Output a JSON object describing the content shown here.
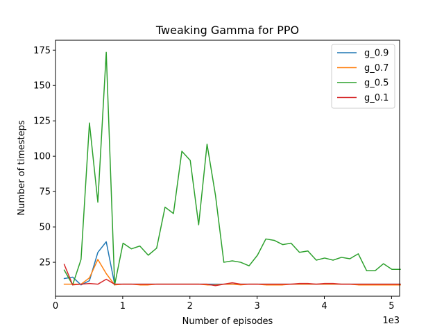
{
  "chart_data": {
    "type": "line",
    "title": "Tweaking Gamma for PPO",
    "xlabel": "Number of episodes",
    "ylabel": "Number of timesteps",
    "x_offset_label": "1e3",
    "xlim": [
      0,
      5.12
    ],
    "ylim": [
      1,
      182
    ],
    "xticks": [
      0,
      1,
      2,
      3,
      4,
      5
    ],
    "xtick_labels": [
      "0",
      "1",
      "2",
      "3",
      "4",
      "5"
    ],
    "yticks": [
      25,
      50,
      75,
      100,
      125,
      150,
      175
    ],
    "ytick_labels": [
      "25",
      "50",
      "75",
      "100",
      "125",
      "150",
      "175"
    ],
    "grid": false,
    "legend_position": "top-right",
    "x": [
      0.13,
      0.255,
      0.38,
      0.505,
      0.63,
      0.755,
      0.88,
      1.005,
      1.13,
      1.255,
      1.38,
      1.505,
      1.63,
      1.755,
      1.88,
      2.005,
      2.13,
      2.255,
      2.38,
      2.505,
      2.63,
      2.755,
      2.88,
      3.005,
      3.13,
      3.255,
      3.38,
      3.505,
      3.63,
      3.755,
      3.88,
      4.005,
      4.13,
      4.255,
      4.38,
      4.505,
      4.63,
      4.755,
      4.88,
      5.005,
      5.13
    ],
    "series": [
      {
        "name": "g_0.9",
        "color": "#1f77b4",
        "values": [
          13.5,
          14.5,
          9,
          12,
          32,
          39.5,
          9.5,
          9.5,
          9.5,
          9.5,
          9.5,
          9.5,
          9.5,
          9.5,
          9.5,
          9.5,
          9.5,
          9.5,
          9.5,
          9.5,
          9.5,
          9.5,
          9.5,
          9.5,
          9.5,
          9.5,
          9.5,
          9.5,
          9.5,
          9.5,
          9.5,
          9.5,
          9.5,
          9.5,
          9.5,
          9.5,
          9.5,
          9.5,
          9.5,
          9.5,
          9.5
        ]
      },
      {
        "name": "g_0.7",
        "color": "#ff7f0e",
        "values": [
          9.5,
          9.5,
          9.5,
          14,
          27,
          17,
          9,
          9.5,
          9.5,
          9,
          9,
          9.5,
          9.5,
          9.5,
          9.5,
          9.5,
          9.5,
          9,
          9,
          9.5,
          9.5,
          9,
          9.5,
          9.5,
          9,
          9,
          9,
          9.5,
          9.5,
          9.5,
          9.5,
          9.5,
          9.5,
          9.5,
          9.5,
          9,
          9,
          9,
          9,
          9,
          9
        ]
      },
      {
        "name": "g_0.5",
        "color": "#2ca02c",
        "values": [
          19.5,
          9,
          27,
          123.5,
          67.5,
          173.5,
          9,
          38.5,
          34.5,
          36.5,
          30,
          35,
          64,
          59.5,
          103.5,
          97,
          51.5,
          108.5,
          72.5,
          25,
          26,
          25,
          22.5,
          30,
          41.5,
          40.5,
          37.5,
          38.5,
          32,
          33,
          26.5,
          28,
          26.5,
          28.5,
          27.5,
          31,
          19,
          19,
          24,
          20,
          20
        ]
      },
      {
        "name": "g_0.1",
        "color": "#d62728",
        "values": [
          23.5,
          9,
          9.5,
          10,
          9.5,
          13,
          9.5,
          9.5,
          9.5,
          9.5,
          9.5,
          9.5,
          9.5,
          9.5,
          9.5,
          9.5,
          9.5,
          9.5,
          8.5,
          9.5,
          10.5,
          9.5,
          9.5,
          9.5,
          9.5,
          9.5,
          9.5,
          9.5,
          10,
          10,
          9.5,
          10,
          10,
          9.5,
          9.5,
          9.5,
          9.5,
          9.5,
          9.5,
          9.5,
          9.5
        ]
      }
    ]
  }
}
